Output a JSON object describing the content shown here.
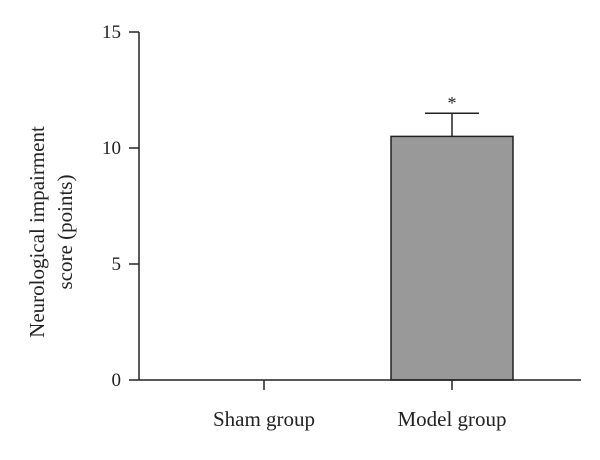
{
  "chart_data": {
    "type": "bar",
    "title": "",
    "xlabel": "",
    "ylabel_lines": [
      "Neurological impairment",
      "score (points)"
    ],
    "ylim": [
      0,
      15
    ],
    "yticks": [
      0,
      5,
      10,
      15
    ],
    "categories": [
      "Sham group",
      "Model group"
    ],
    "values": [
      0,
      10.5
    ],
    "error": [
      0,
      1.0
    ],
    "significance": [
      "",
      "*"
    ],
    "bar_color": "#999999",
    "bar_edge_color": "#222222",
    "grid": false
  }
}
